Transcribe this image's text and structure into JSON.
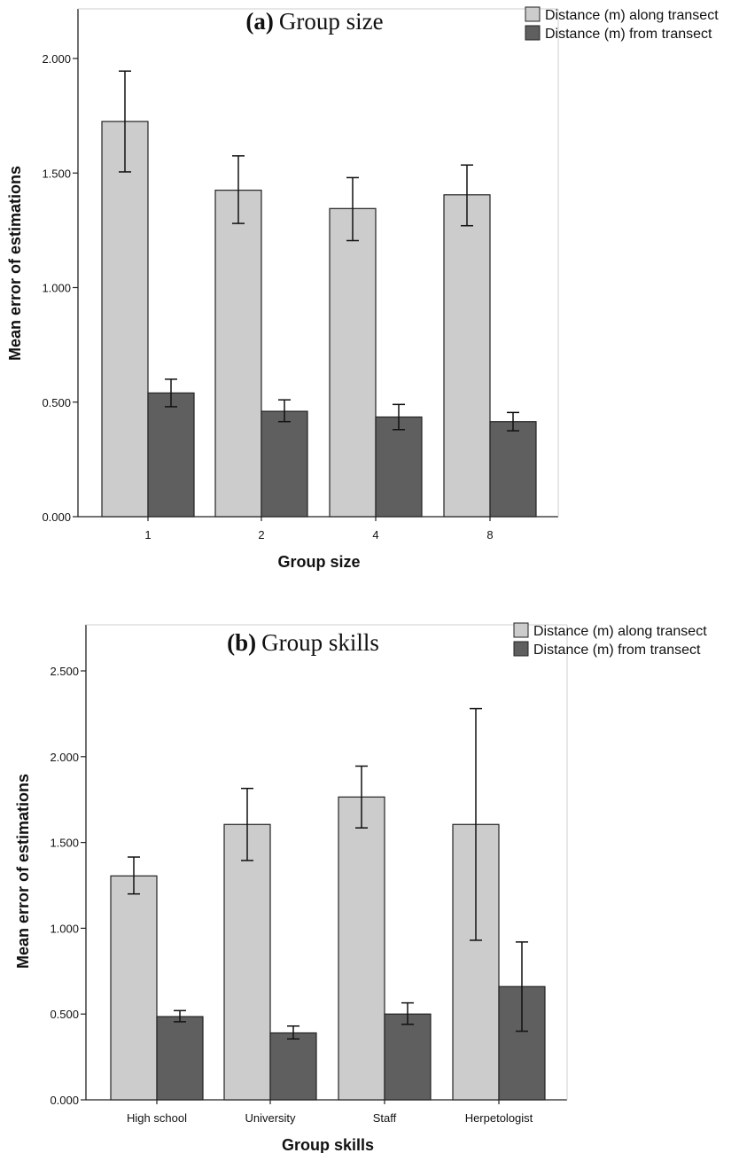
{
  "colors": {
    "along": "#cccccc",
    "from": "#5f5f5f"
  },
  "chart_data": [
    {
      "type": "bar",
      "title_letter": "(a)",
      "title_text": "Group size",
      "xlabel": "Group size",
      "ylabel": "Mean error of estimations",
      "categories": [
        "1",
        "2",
        "4",
        "8"
      ],
      "ylim": [
        0,
        2.2
      ],
      "yticks": [
        "0.000",
        "0.500",
        "1.000",
        "1.500",
        "2.000"
      ],
      "ytick_values": [
        0,
        0.5,
        1.0,
        1.5,
        2.0
      ],
      "legend_position": "top-right",
      "grid": false,
      "series": [
        {
          "name": "Distance (m) along transect",
          "color_key": "along",
          "values": [
            1.725,
            1.425,
            1.345,
            1.405
          ],
          "err_low": [
            1.505,
            1.28,
            1.205,
            1.27
          ],
          "err_high": [
            1.945,
            1.575,
            1.48,
            1.535
          ]
        },
        {
          "name": "Distance (m) from transect",
          "color_key": "from",
          "values": [
            0.54,
            0.46,
            0.435,
            0.415
          ],
          "err_low": [
            0.48,
            0.415,
            0.38,
            0.375
          ],
          "err_high": [
            0.6,
            0.51,
            0.49,
            0.455
          ]
        }
      ]
    },
    {
      "type": "bar",
      "title_letter": "(b)",
      "title_text": "Group skills",
      "xlabel": "Group skills",
      "ylabel": "Mean error of estimations",
      "categories": [
        "High school",
        "University",
        "Staff",
        "Herpetologist"
      ],
      "ylim": [
        0,
        2.75
      ],
      "yticks": [
        "0.000",
        "0.500",
        "1.000",
        "1.500",
        "2.000",
        "2.500"
      ],
      "ytick_values": [
        0,
        0.5,
        1.0,
        1.5,
        2.0,
        2.5
      ],
      "legend_position": "top-right",
      "grid": false,
      "series": [
        {
          "name": "Distance (m) along transect",
          "color_key": "along",
          "values": [
            1.305,
            1.605,
            1.765,
            1.605
          ],
          "err_low": [
            1.2,
            1.395,
            1.585,
            0.93
          ],
          "err_high": [
            1.415,
            1.815,
            1.945,
            2.28
          ]
        },
        {
          "name": "Distance (m) from transect",
          "color_key": "from",
          "values": [
            0.485,
            0.39,
            0.5,
            0.66
          ],
          "err_low": [
            0.455,
            0.355,
            0.44,
            0.4
          ],
          "err_high": [
            0.52,
            0.43,
            0.565,
            0.92
          ]
        }
      ]
    }
  ]
}
